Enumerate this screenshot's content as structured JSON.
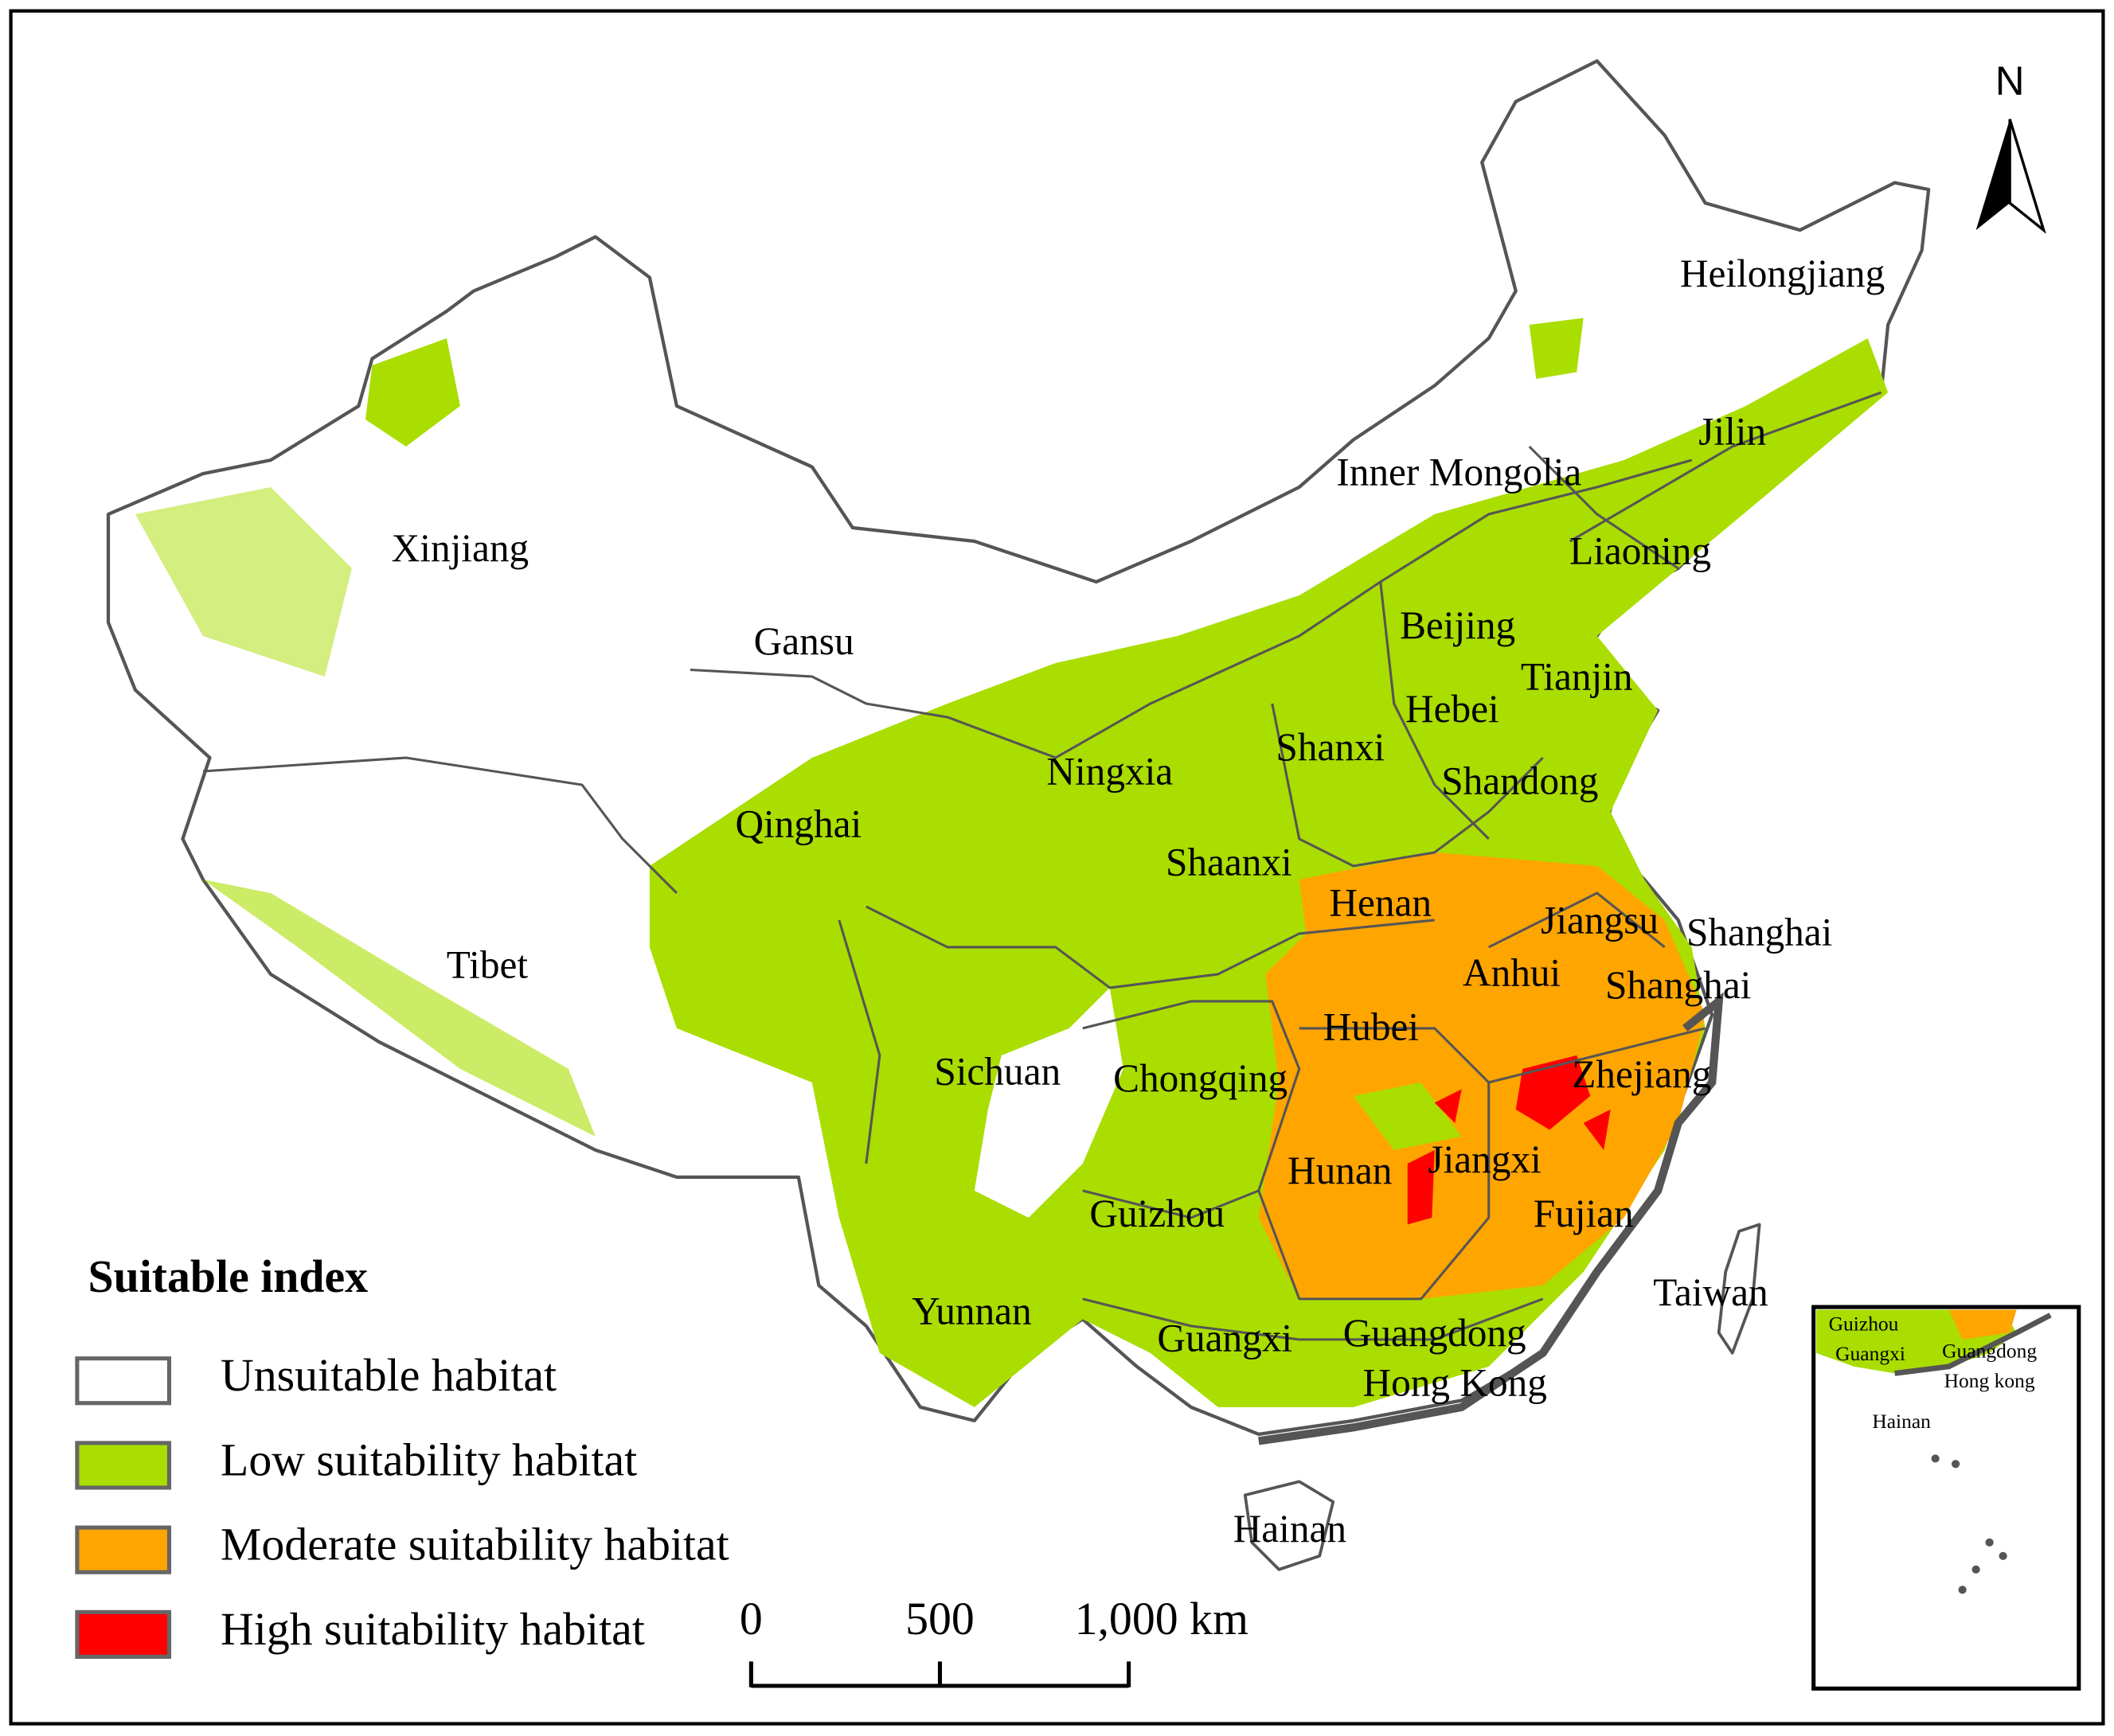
{
  "map": {
    "labels": [
      "Heilongjiang",
      "Jilin",
      "Inner Mongolia",
      "Liaoning",
      "Xinjiang",
      "Beijing",
      "Tianjin",
      "Gansu",
      "Hebei",
      "Shanxi",
      "Ningxia",
      "Shandong",
      "Qinghai",
      "Shaanxi",
      "Henan",
      "Jiangsu",
      "Shanghai",
      "Anhui",
      "Shanghai",
      "Tibet",
      "Hubei",
      "Sichuan",
      "Chongqing",
      "Zhejiang",
      "Hunan",
      "Jiangxi",
      "Guizhou",
      "Fujian",
      "Taiwan",
      "Yunnan",
      "Guangxi",
      "Guangdong",
      "Hong Kong",
      "Hainan"
    ]
  },
  "north_arrow": {
    "label": "N"
  },
  "legend": {
    "title": "Suitable index",
    "items": [
      {
        "label": "Unsuitable habitat",
        "color": "#ffffff"
      },
      {
        "label": "Low suitability habitat",
        "color": "#aadd00"
      },
      {
        "label": "Moderate suitability habitat",
        "color": "#ffa500"
      },
      {
        "label": "High suitability habitat",
        "color": "#ff0000"
      }
    ]
  },
  "scale_bar": {
    "ticks": [
      0,
      500,
      {
        "value": 1000,
        "label": "1,000 km"
      }
    ]
  },
  "inset": {
    "labels": [
      "Guizhou",
      "Guangxi",
      "Guangdong",
      "Hong kong",
      "Hainan"
    ]
  }
}
